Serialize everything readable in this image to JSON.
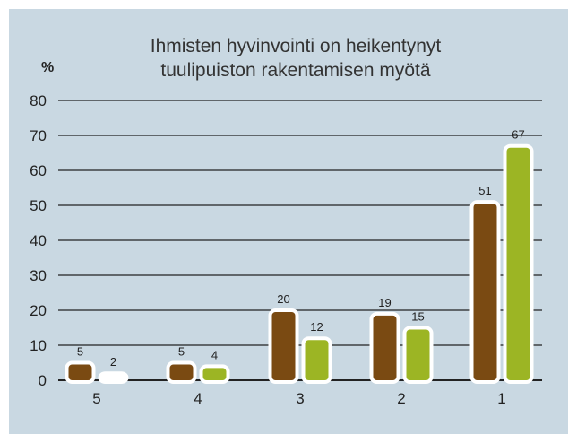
{
  "chart_data": {
    "type": "bar",
    "title_lines": [
      "Ihmisten hyvinvointi on heikentynyt",
      "tuulipuiston rakentamisen myötä"
    ],
    "ylabel": "%",
    "ylim": [
      0,
      80
    ],
    "yticks": [
      0,
      10,
      20,
      30,
      40,
      50,
      60,
      70,
      80
    ],
    "categories": [
      "5",
      "4",
      "3",
      "2",
      "1"
    ],
    "series": [
      {
        "values": [
          5,
          5,
          20,
          19,
          51
        ],
        "color": "#7a4a12"
      },
      {
        "values": [
          2,
          4,
          12,
          15,
          67
        ],
        "color": "#9cb524"
      }
    ],
    "grid": true
  }
}
